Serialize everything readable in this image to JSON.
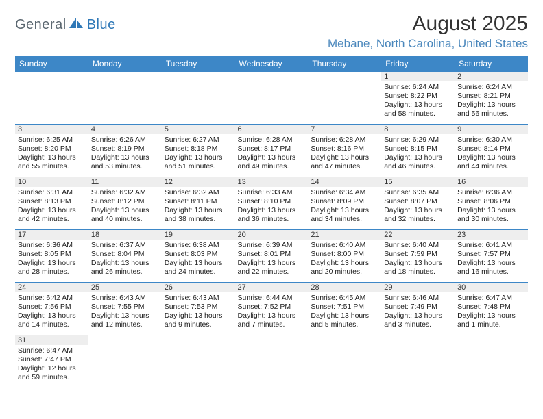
{
  "logo": {
    "part1": "General",
    "part2": "Blue"
  },
  "title": "August 2025",
  "location": "Mebane, North Carolina, United States",
  "colors": {
    "header_bg": "#3d87c7",
    "header_text": "#ffffff",
    "border": "#3d87c7",
    "daynum_bg": "#eeeeee",
    "location_text": "#4a87bc",
    "logo_gray": "#5b6770",
    "logo_blue": "#2f78b7"
  },
  "weekdays": [
    "Sunday",
    "Monday",
    "Tuesday",
    "Wednesday",
    "Thursday",
    "Friday",
    "Saturday"
  ],
  "weeks": [
    [
      null,
      null,
      null,
      null,
      null,
      {
        "n": "1",
        "sunrise": "6:24 AM",
        "sunset": "8:22 PM",
        "daylight": "13 hours and 58 minutes."
      },
      {
        "n": "2",
        "sunrise": "6:24 AM",
        "sunset": "8:21 PM",
        "daylight": "13 hours and 56 minutes."
      }
    ],
    [
      {
        "n": "3",
        "sunrise": "6:25 AM",
        "sunset": "8:20 PM",
        "daylight": "13 hours and 55 minutes."
      },
      {
        "n": "4",
        "sunrise": "6:26 AM",
        "sunset": "8:19 PM",
        "daylight": "13 hours and 53 minutes."
      },
      {
        "n": "5",
        "sunrise": "6:27 AM",
        "sunset": "8:18 PM",
        "daylight": "13 hours and 51 minutes."
      },
      {
        "n": "6",
        "sunrise": "6:28 AM",
        "sunset": "8:17 PM",
        "daylight": "13 hours and 49 minutes."
      },
      {
        "n": "7",
        "sunrise": "6:28 AM",
        "sunset": "8:16 PM",
        "daylight": "13 hours and 47 minutes."
      },
      {
        "n": "8",
        "sunrise": "6:29 AM",
        "sunset": "8:15 PM",
        "daylight": "13 hours and 46 minutes."
      },
      {
        "n": "9",
        "sunrise": "6:30 AM",
        "sunset": "8:14 PM",
        "daylight": "13 hours and 44 minutes."
      }
    ],
    [
      {
        "n": "10",
        "sunrise": "6:31 AM",
        "sunset": "8:13 PM",
        "daylight": "13 hours and 42 minutes."
      },
      {
        "n": "11",
        "sunrise": "6:32 AM",
        "sunset": "8:12 PM",
        "daylight": "13 hours and 40 minutes."
      },
      {
        "n": "12",
        "sunrise": "6:32 AM",
        "sunset": "8:11 PM",
        "daylight": "13 hours and 38 minutes."
      },
      {
        "n": "13",
        "sunrise": "6:33 AM",
        "sunset": "8:10 PM",
        "daylight": "13 hours and 36 minutes."
      },
      {
        "n": "14",
        "sunrise": "6:34 AM",
        "sunset": "8:09 PM",
        "daylight": "13 hours and 34 minutes."
      },
      {
        "n": "15",
        "sunrise": "6:35 AM",
        "sunset": "8:07 PM",
        "daylight": "13 hours and 32 minutes."
      },
      {
        "n": "16",
        "sunrise": "6:36 AM",
        "sunset": "8:06 PM",
        "daylight": "13 hours and 30 minutes."
      }
    ],
    [
      {
        "n": "17",
        "sunrise": "6:36 AM",
        "sunset": "8:05 PM",
        "daylight": "13 hours and 28 minutes."
      },
      {
        "n": "18",
        "sunrise": "6:37 AM",
        "sunset": "8:04 PM",
        "daylight": "13 hours and 26 minutes."
      },
      {
        "n": "19",
        "sunrise": "6:38 AM",
        "sunset": "8:03 PM",
        "daylight": "13 hours and 24 minutes."
      },
      {
        "n": "20",
        "sunrise": "6:39 AM",
        "sunset": "8:01 PM",
        "daylight": "13 hours and 22 minutes."
      },
      {
        "n": "21",
        "sunrise": "6:40 AM",
        "sunset": "8:00 PM",
        "daylight": "13 hours and 20 minutes."
      },
      {
        "n": "22",
        "sunrise": "6:40 AM",
        "sunset": "7:59 PM",
        "daylight": "13 hours and 18 minutes."
      },
      {
        "n": "23",
        "sunrise": "6:41 AM",
        "sunset": "7:57 PM",
        "daylight": "13 hours and 16 minutes."
      }
    ],
    [
      {
        "n": "24",
        "sunrise": "6:42 AM",
        "sunset": "7:56 PM",
        "daylight": "13 hours and 14 minutes."
      },
      {
        "n": "25",
        "sunrise": "6:43 AM",
        "sunset": "7:55 PM",
        "daylight": "13 hours and 12 minutes."
      },
      {
        "n": "26",
        "sunrise": "6:43 AM",
        "sunset": "7:53 PM",
        "daylight": "13 hours and 9 minutes."
      },
      {
        "n": "27",
        "sunrise": "6:44 AM",
        "sunset": "7:52 PM",
        "daylight": "13 hours and 7 minutes."
      },
      {
        "n": "28",
        "sunrise": "6:45 AM",
        "sunset": "7:51 PM",
        "daylight": "13 hours and 5 minutes."
      },
      {
        "n": "29",
        "sunrise": "6:46 AM",
        "sunset": "7:49 PM",
        "daylight": "13 hours and 3 minutes."
      },
      {
        "n": "30",
        "sunrise": "6:47 AM",
        "sunset": "7:48 PM",
        "daylight": "13 hours and 1 minute."
      }
    ],
    [
      {
        "n": "31",
        "sunrise": "6:47 AM",
        "sunset": "7:47 PM",
        "daylight": "12 hours and 59 minutes."
      },
      null,
      null,
      null,
      null,
      null,
      null
    ]
  ]
}
